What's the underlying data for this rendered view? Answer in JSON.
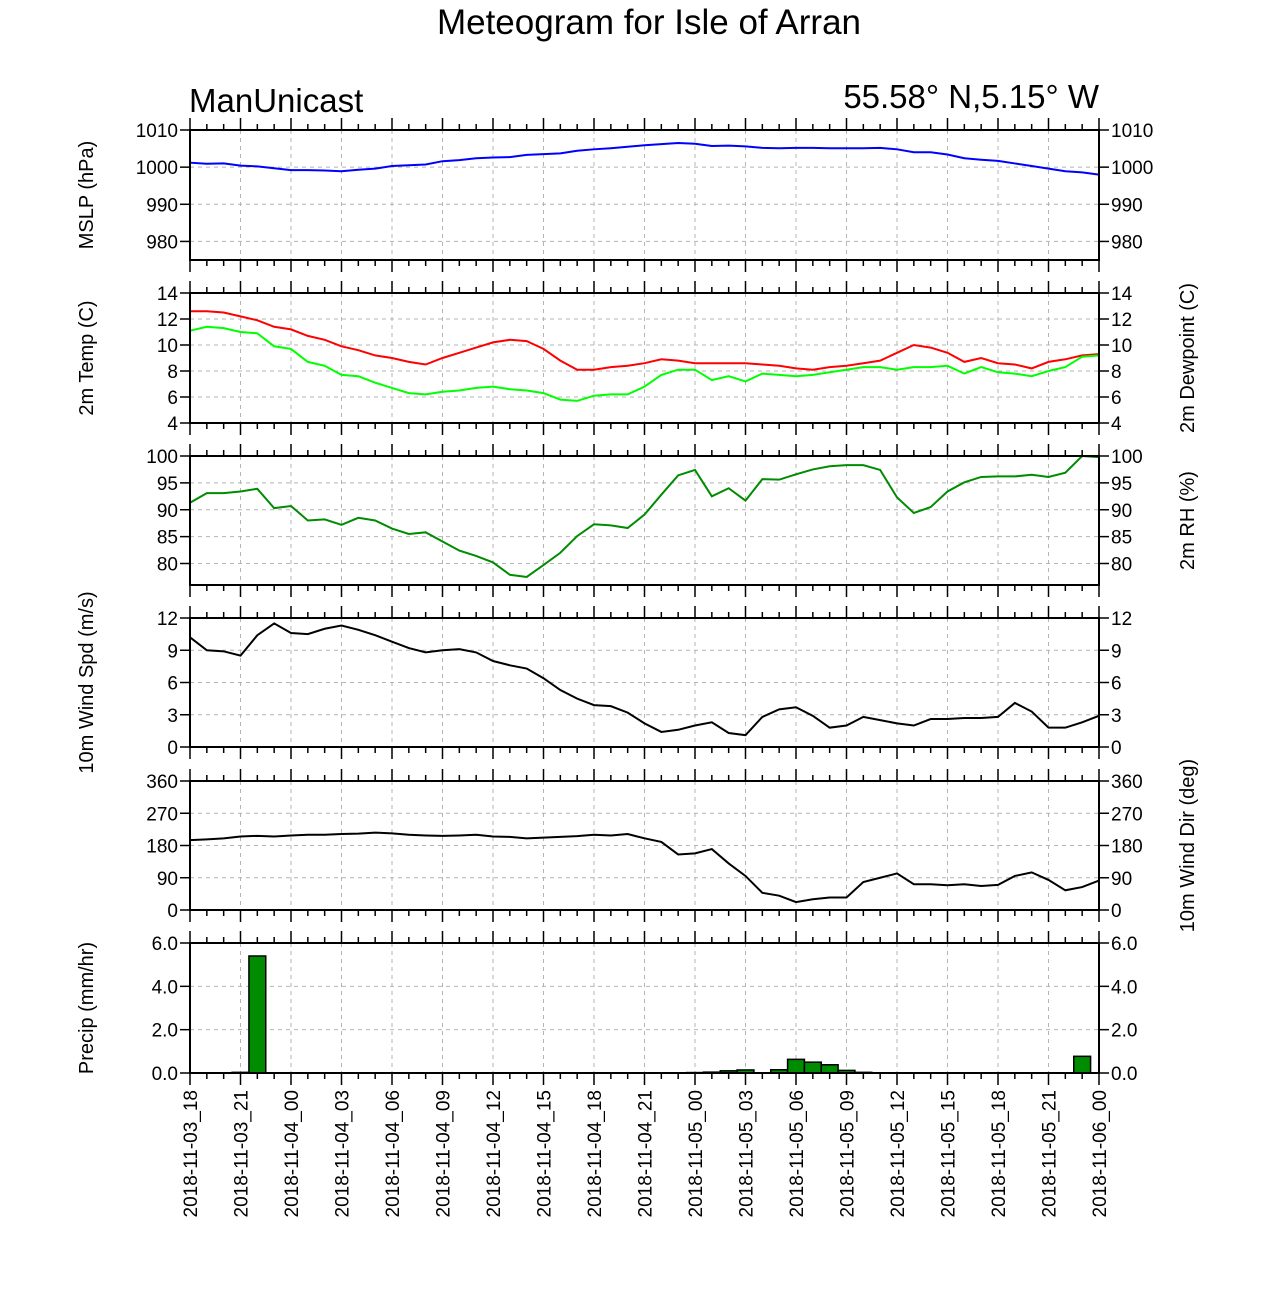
{
  "title": "Meteogram for Isle of Arran",
  "source_label": "ManUnicast",
  "location_label": "55.58° N,5.15° W",
  "colors": {
    "mslp": "#0000ff",
    "temp": "#ff0000",
    "dewpoint": "#00ff00",
    "rh": "#008c00",
    "wind": "#000000",
    "precip_fill": "#008c00",
    "grid": "#b4b4b4"
  },
  "chart_data": [
    {
      "type": "line",
      "panel": "mslp",
      "ylabel_left": "MSLP (hPa)",
      "ylabel_right": "",
      "ylim": [
        975,
        1010
      ],
      "yticks": [
        980,
        990,
        1000,
        1010
      ],
      "ytick_labels": [
        "980",
        "990",
        "1000",
        "1010"
      ],
      "grid": true,
      "series": [
        {
          "key": "mslp",
          "values": [
            1001.2,
            1000.9,
            1001.0,
            1000.4,
            1000.2,
            999.7,
            999.2,
            999.2,
            999.1,
            998.9,
            999.3,
            999.6,
            1000.3,
            1000.5,
            1000.7,
            1001.6,
            1001.9,
            1002.4,
            1002.6,
            1002.7,
            1003.3,
            1003.5,
            1003.7,
            1004.4,
            1004.8,
            1005.1,
            1005.5,
            1005.9,
            1006.2,
            1006.5,
            1006.3,
            1005.7,
            1005.8,
            1005.6,
            1005.2,
            1005.1,
            1005.2,
            1005.2,
            1005.1,
            1005.1,
            1005.1,
            1005.2,
            1004.8,
            1004.0,
            1004.0,
            1003.4,
            1002.4,
            1002.0,
            1001.7,
            1001.0,
            1000.3,
            999.6,
            998.9,
            998.6,
            998.0
          ]
        }
      ]
    },
    {
      "type": "line",
      "panel": "temp",
      "ylabel_left": "2m Temp (C)",
      "ylabel_right": "2m Dewpoint (C)",
      "ylim": [
        4,
        14
      ],
      "yticks": [
        4,
        6,
        8,
        10,
        12,
        14
      ],
      "ytick_labels": [
        "4",
        "6",
        "8",
        "10",
        "12",
        "14"
      ],
      "grid": true,
      "series": [
        {
          "key": "temp",
          "values": [
            12.6,
            12.6,
            12.5,
            12.2,
            11.9,
            11.4,
            11.2,
            10.7,
            10.4,
            9.9,
            9.6,
            9.2,
            9.0,
            8.7,
            8.5,
            9.0,
            9.4,
            9.8,
            10.2,
            10.4,
            10.3,
            9.7,
            8.8,
            8.1,
            8.1,
            8.3,
            8.4,
            8.6,
            8.9,
            8.8,
            8.6,
            8.6,
            8.6,
            8.6,
            8.5,
            8.4,
            8.2,
            8.1,
            8.3,
            8.4,
            8.6,
            8.8,
            9.4,
            10.0,
            9.8,
            9.4,
            8.7,
            9.0,
            8.6,
            8.5,
            8.2,
            8.7,
            8.9,
            9.2,
            9.3
          ]
        },
        {
          "key": "dewpoint",
          "values": [
            11.1,
            11.4,
            11.3,
            11.0,
            10.9,
            9.9,
            9.7,
            8.7,
            8.4,
            7.7,
            7.6,
            7.1,
            6.7,
            6.3,
            6.2,
            6.4,
            6.5,
            6.7,
            6.8,
            6.6,
            6.5,
            6.3,
            5.8,
            5.7,
            6.1,
            6.2,
            6.2,
            6.8,
            7.7,
            8.1,
            8.1,
            7.3,
            7.6,
            7.2,
            7.8,
            7.7,
            7.6,
            7.7,
            7.9,
            8.1,
            8.3,
            8.3,
            8.1,
            8.3,
            8.3,
            8.4,
            7.8,
            8.3,
            7.9,
            7.8,
            7.6,
            8.0,
            8.3,
            9.1,
            9.2
          ]
        }
      ]
    },
    {
      "type": "line",
      "panel": "rh",
      "ylabel_left": "",
      "ylabel_right": "2m RH (%)",
      "ylim": [
        76,
        100
      ],
      "yticks": [
        80,
        85,
        90,
        95,
        100
      ],
      "ytick_labels": [
        "80",
        "85",
        "90",
        "95",
        "100"
      ],
      "grid": true,
      "series": [
        {
          "key": "rh",
          "values": [
            91.3,
            93.1,
            93.1,
            93.4,
            93.9,
            90.3,
            90.7,
            88.0,
            88.2,
            87.2,
            88.5,
            88.0,
            86.5,
            85.5,
            85.8,
            84.1,
            82.4,
            81.4,
            80.2,
            77.9,
            77.5,
            79.7,
            82.0,
            85.1,
            87.3,
            87.1,
            86.6,
            89.1,
            92.8,
            96.4,
            97.4,
            92.5,
            94.0,
            91.7,
            95.7,
            95.6,
            96.6,
            97.5,
            98.1,
            98.3,
            98.3,
            97.4,
            92.3,
            89.4,
            90.5,
            93.4,
            95.1,
            96.1,
            96.2,
            96.2,
            96.5,
            96.1,
            96.9,
            100.0,
            99.8
          ]
        }
      ]
    },
    {
      "type": "line",
      "panel": "wind_speed",
      "ylabel_left": "10m Wind Spd (m/s)",
      "ylabel_right": "",
      "ylim": [
        0,
        12
      ],
      "yticks": [
        0,
        3,
        6,
        9,
        12
      ],
      "ytick_labels": [
        "0",
        "3",
        "6",
        "9",
        "12"
      ],
      "grid": true,
      "series": [
        {
          "key": "wind",
          "values": [
            10.2,
            9.0,
            8.9,
            8.5,
            10.4,
            11.5,
            10.6,
            10.5,
            11.0,
            11.3,
            10.9,
            10.4,
            9.8,
            9.2,
            8.8,
            9.0,
            9.1,
            8.8,
            8.0,
            7.6,
            7.3,
            6.4,
            5.3,
            4.5,
            3.9,
            3.8,
            3.2,
            2.2,
            1.4,
            1.6,
            2.0,
            2.3,
            1.3,
            1.1,
            2.8,
            3.5,
            3.7,
            2.9,
            1.8,
            2.0,
            2.8,
            2.5,
            2.2,
            2.0,
            2.6,
            2.6,
            2.7,
            2.7,
            2.8,
            4.1,
            3.3,
            1.8,
            1.8,
            2.3,
            2.9
          ]
        }
      ]
    },
    {
      "type": "line",
      "panel": "wind_dir",
      "ylabel_left": "",
      "ylabel_right": "10m Wind Dir (deg)",
      "ylim": [
        0,
        360
      ],
      "yticks": [
        0,
        90,
        180,
        270,
        360
      ],
      "ytick_labels": [
        "0",
        "90",
        "180",
        "270",
        "360"
      ],
      "grid": true,
      "series": [
        {
          "key": "wind",
          "values": [
            195,
            197,
            200,
            205,
            207,
            205,
            208,
            210,
            210,
            212,
            213,
            216,
            214,
            210,
            208,
            207,
            208,
            210,
            205,
            204,
            200,
            202,
            204,
            206,
            210,
            208,
            212,
            200,
            190,
            155,
            158,
            170,
            130,
            95,
            48,
            40,
            22,
            30,
            35,
            35,
            78,
            90,
            102,
            72,
            72,
            69,
            72,
            67,
            70,
            95,
            105,
            84,
            55,
            64,
            82
          ]
        }
      ]
    },
    {
      "type": "bar",
      "panel": "precip",
      "ylabel_left": "Precip (mm/hr)",
      "ylabel_right": "",
      "ylim": [
        0,
        6
      ],
      "yticks": [
        0,
        2,
        4,
        6
      ],
      "ytick_labels": [
        "0.0",
        "2.0",
        "4.0",
        "6.0"
      ],
      "grid": true,
      "series": [
        {
          "key": "precip_fill",
          "values": [
            0,
            0,
            0,
            0.03,
            5.4,
            0,
            0,
            0,
            0,
            0,
            0,
            0,
            0,
            0,
            0,
            0,
            0,
            0,
            0,
            0,
            0,
            0,
            0,
            0,
            0,
            0,
            0,
            0,
            0,
            0,
            0.02,
            0.04,
            0.1,
            0.14,
            0,
            0.15,
            0.63,
            0.5,
            0.38,
            0.12,
            0.03,
            0,
            0,
            0,
            0,
            0,
            0,
            0,
            0,
            0,
            0,
            0,
            0,
            0.77,
            0
          ]
        }
      ]
    }
  ],
  "x_axis": {
    "tick_labels": [
      "2018-11-03_18",
      "2018-11-03_21",
      "2018-11-04_00",
      "2018-11-04_03",
      "2018-11-04_06",
      "2018-11-04_09",
      "2018-11-04_12",
      "2018-11-04_15",
      "2018-11-04_18",
      "2018-11-04_21",
      "2018-11-05_00",
      "2018-11-05_03",
      "2018-11-05_06",
      "2018-11-05_09",
      "2018-11-05_12",
      "2018-11-05_15",
      "2018-11-05_18",
      "2018-11-05_21",
      "2018-11-06_00"
    ],
    "step_hours": 1,
    "label_step_hours": 3
  }
}
